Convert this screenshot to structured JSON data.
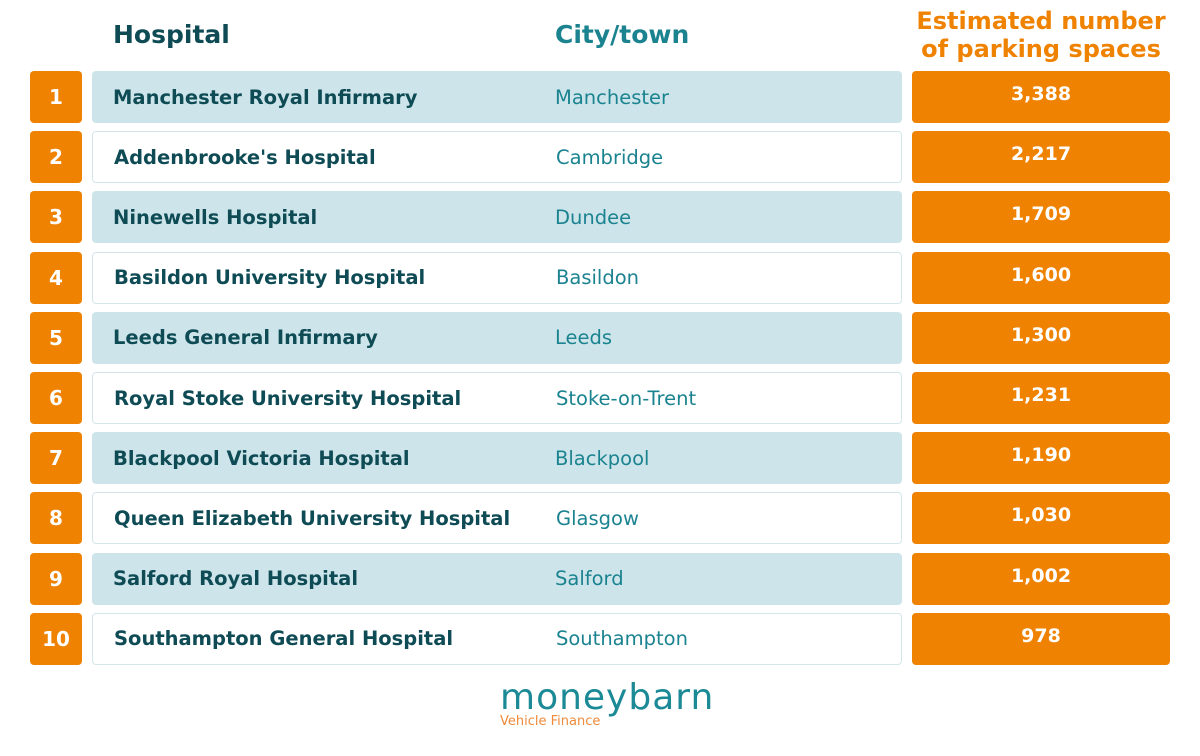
{
  "headers": {
    "hospital": "Hospital",
    "city": "City/town",
    "value": "Estimated number of parking spaces"
  },
  "rows": [
    {
      "rank": "1",
      "hospital": "Manchester Royal Infirmary",
      "city": "Manchester",
      "value": "3,388"
    },
    {
      "rank": "2",
      "hospital": "Addenbrooke's Hospital",
      "city": "Cambridge",
      "value": "2,217"
    },
    {
      "rank": "3",
      "hospital": "Ninewells Hospital",
      "city": "Dundee",
      "value": "1,709"
    },
    {
      "rank": "4",
      "hospital": "Basildon University Hospital",
      "city": "Basildon",
      "value": "1,600"
    },
    {
      "rank": "5",
      "hospital": "Leeds General Infirmary",
      "city": "Leeds",
      "value": "1,300"
    },
    {
      "rank": "6",
      "hospital": "Royal Stoke University Hospital",
      "city": "Stoke-on-Trent",
      "value": "1,231"
    },
    {
      "rank": "7",
      "hospital": "Blackpool Victoria Hospital",
      "city": "Blackpool",
      "value": "1,190"
    },
    {
      "rank": "8",
      "hospital": "Queen Elizabeth University Hospital",
      "city": "Glasgow",
      "value": "1,030"
    },
    {
      "rank": "9",
      "hospital": "Salford Royal Hospital",
      "city": "Salford",
      "value": "1,002"
    },
    {
      "rank": "10",
      "hospital": "Southampton General Hospital",
      "city": "Southampton",
      "value": "978"
    }
  ],
  "logo": {
    "name": "moneybarn",
    "tagline": "Vehicle Finance"
  },
  "colors": {
    "accent": "#ef8200",
    "teal": "#0e4b55",
    "row_shade": "#cde5ea"
  },
  "chart_data": {
    "type": "table",
    "columns": [
      "Rank",
      "Hospital",
      "City/town",
      "Estimated number of parking spaces"
    ],
    "rows": [
      [
        1,
        "Manchester Royal Infirmary",
        "Manchester",
        3388
      ],
      [
        2,
        "Addenbrooke's Hospital",
        "Cambridge",
        2217
      ],
      [
        3,
        "Ninewells Hospital",
        "Dundee",
        1709
      ],
      [
        4,
        "Basildon University Hospital",
        "Basildon",
        1600
      ],
      [
        5,
        "Leeds General Infirmary",
        "Leeds",
        1300
      ],
      [
        6,
        "Royal Stoke University Hospital",
        "Stoke-on-Trent",
        1231
      ],
      [
        7,
        "Blackpool Victoria Hospital",
        "Blackpool",
        1190
      ],
      [
        8,
        "Queen Elizabeth University Hospital",
        "Glasgow",
        1030
      ],
      [
        9,
        "Salford Royal Hospital",
        "Salford",
        1002
      ],
      [
        10,
        "Southampton General Hospital",
        "Southampton",
        978
      ]
    ]
  }
}
